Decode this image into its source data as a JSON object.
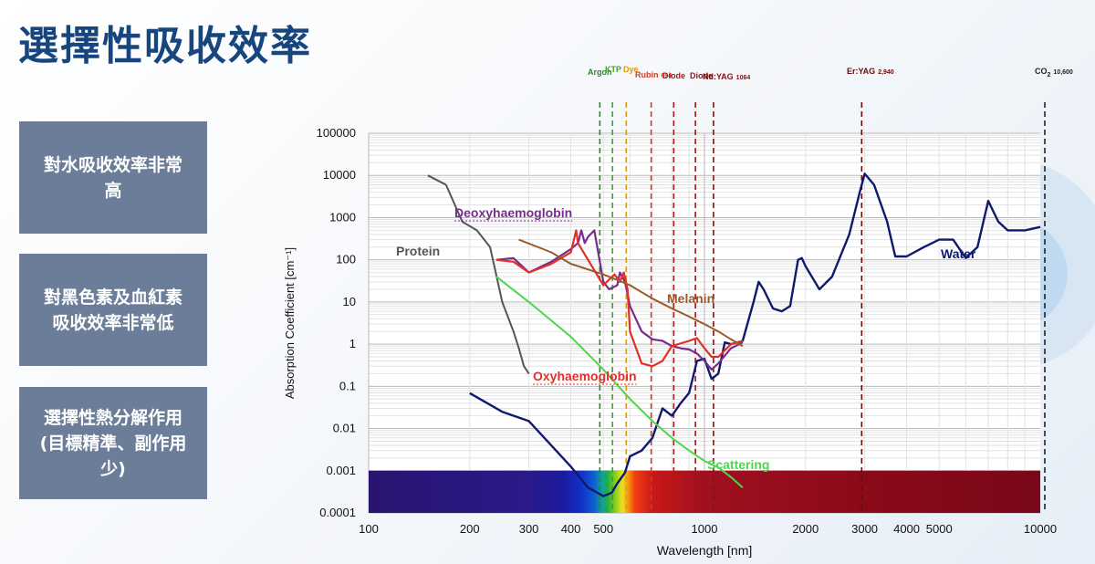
{
  "title": "選擇性吸收效率",
  "side_boxes": [
    {
      "text": "對水吸收效率非常高"
    },
    {
      "text": "對黑色素及血紅素吸收效率非常低"
    },
    {
      "text": "選擇性熱分解作用 (目標精準、副作用少)"
    }
  ],
  "colors": {
    "title": "#17467e",
    "box": "#6b7d99",
    "water": "#0f1a6e",
    "protein": "#555555",
    "deoxy": "#7a2b8f",
    "oxy": "#e0302a",
    "melanin": "#9a5a2a",
    "scattering": "#4fd64a"
  },
  "chart_data": {
    "type": "line",
    "xscale": "log",
    "yscale": "log",
    "xlabel": "Wavelength [nm]",
    "ylabel": "Absorption Coefficient [cm⁻¹]",
    "xlim": [
      100,
      10000
    ],
    "ylim": [
      0.0001,
      100000
    ],
    "x_ticks": [
      100,
      200,
      300,
      400,
      500,
      1000,
      2000,
      3000,
      4000,
      5000,
      10000
    ],
    "y_ticks": [
      "0.0001",
      "0.001",
      "0.01",
      "0.1",
      "1",
      "10",
      "100",
      "1000",
      "10000",
      "100000"
    ],
    "grid": true,
    "series": [
      {
        "name": "Water",
        "color": "#0f1a6e",
        "points": [
          [
            200,
            0.069
          ],
          [
            250,
            0.025
          ],
          [
            300,
            0.015
          ],
          [
            400,
            0.00125
          ],
          [
            450,
            0.0004
          ],
          [
            500,
            0.00025
          ],
          [
            530,
            0.0003
          ],
          [
            550,
            0.0005
          ],
          [
            580,
            0.0009
          ],
          [
            600,
            0.0022
          ],
          [
            650,
            0.003
          ],
          [
            700,
            0.006
          ],
          [
            750,
            0.03
          ],
          [
            800,
            0.02
          ],
          [
            850,
            0.04
          ],
          [
            900,
            0.07
          ],
          [
            950,
            0.4
          ],
          [
            1000,
            0.45
          ],
          [
            1050,
            0.15
          ],
          [
            1100,
            0.2
          ],
          [
            1150,
            1.1
          ],
          [
            1200,
            1.0
          ],
          [
            1300,
            1.2
          ],
          [
            1400,
            10
          ],
          [
            1450,
            30
          ],
          [
            1500,
            20
          ],
          [
            1600,
            7
          ],
          [
            1700,
            6
          ],
          [
            1800,
            8
          ],
          [
            1900,
            100
          ],
          [
            1950,
            110
          ],
          [
            2000,
            70
          ],
          [
            2200,
            20
          ],
          [
            2400,
            40
          ],
          [
            2700,
            400
          ],
          [
            2900,
            4000
          ],
          [
            3000,
            11000
          ],
          [
            3200,
            6000
          ],
          [
            3500,
            800
          ],
          [
            3700,
            120
          ],
          [
            4000,
            120
          ],
          [
            4500,
            200
          ],
          [
            5000,
            300
          ],
          [
            5500,
            300
          ],
          [
            6000,
            110
          ],
          [
            6500,
            200
          ],
          [
            7000,
            2500
          ],
          [
            7500,
            800
          ],
          [
            8000,
            500
          ],
          [
            9000,
            500
          ],
          [
            10000,
            600
          ]
        ]
      },
      {
        "name": "Protein",
        "color": "#555555",
        "points": [
          [
            150,
            10000
          ],
          [
            170,
            6000
          ],
          [
            190,
            800
          ],
          [
            210,
            500
          ],
          [
            230,
            200
          ],
          [
            250,
            10
          ],
          [
            270,
            2
          ],
          [
            280,
            0.8
          ],
          [
            290,
            0.3
          ],
          [
            300,
            0.2
          ]
        ]
      },
      {
        "name": "Deoxyhaemoglobin",
        "color": "#7a2b8f",
        "points": [
          [
            240,
            100
          ],
          [
            270,
            110
          ],
          [
            300,
            50
          ],
          [
            350,
            90
          ],
          [
            400,
            180
          ],
          [
            420,
            250
          ],
          [
            430,
            500
          ],
          [
            440,
            250
          ],
          [
            450,
            350
          ],
          [
            470,
            500
          ],
          [
            500,
            30
          ],
          [
            520,
            20
          ],
          [
            550,
            25
          ],
          [
            560,
            50
          ],
          [
            580,
            30
          ],
          [
            600,
            8
          ],
          [
            650,
            2
          ],
          [
            700,
            1.3
          ],
          [
            750,
            1.2
          ],
          [
            800,
            0.9
          ],
          [
            850,
            0.8
          ],
          [
            900,
            0.75
          ],
          [
            950,
            0.6
          ],
          [
            1000,
            0.4
          ],
          [
            1050,
            0.25
          ],
          [
            1100,
            0.35
          ],
          [
            1200,
            0.8
          ],
          [
            1300,
            1.1
          ]
        ]
      },
      {
        "name": "Oxyhaemoglobin",
        "color": "#e0302a",
        "points": [
          [
            240,
            100
          ],
          [
            270,
            90
          ],
          [
            300,
            50
          ],
          [
            350,
            80
          ],
          [
            400,
            150
          ],
          [
            415,
            500
          ],
          [
            420,
            250
          ],
          [
            450,
            100
          ],
          [
            500,
            25
          ],
          [
            540,
            45
          ],
          [
            560,
            30
          ],
          [
            575,
            50
          ],
          [
            590,
            20
          ],
          [
            600,
            2
          ],
          [
            650,
            0.35
          ],
          [
            700,
            0.3
          ],
          [
            750,
            0.4
          ],
          [
            800,
            0.9
          ],
          [
            900,
            1.2
          ],
          [
            950,
            1.4
          ],
          [
            1000,
            0.8
          ],
          [
            1050,
            0.5
          ],
          [
            1100,
            0.5
          ],
          [
            1200,
            1.0
          ],
          [
            1300,
            1.2
          ]
        ]
      },
      {
        "name": "Melanin",
        "color": "#9a5a2a",
        "points": [
          [
            280,
            300
          ],
          [
            350,
            150
          ],
          [
            400,
            80
          ],
          [
            500,
            45
          ],
          [
            600,
            25
          ],
          [
            700,
            12
          ],
          [
            800,
            7
          ],
          [
            900,
            4.5
          ],
          [
            1000,
            3
          ],
          [
            1100,
            2
          ],
          [
            1200,
            1.3
          ],
          [
            1300,
            0.9
          ]
        ]
      },
      {
        "name": "Scattering",
        "color": "#4fd64a",
        "points": [
          [
            240,
            40
          ],
          [
            300,
            10
          ],
          [
            400,
            1.5
          ],
          [
            500,
            0.25
          ],
          [
            600,
            0.05
          ],
          [
            700,
            0.015
          ],
          [
            800,
            0.006
          ],
          [
            900,
            0.003
          ],
          [
            1000,
            0.0017
          ],
          [
            1100,
            0.0012
          ],
          [
            1200,
            0.0007
          ],
          [
            1300,
            0.0004
          ]
        ]
      }
    ],
    "laser_lines": [
      {
        "name": "Argon 488",
        "x": 488,
        "color": "#2a8a2a"
      },
      {
        "name": "KTP 532",
        "x": 532,
        "color": "#4a9a3a"
      },
      {
        "name": "Dye 585",
        "x": 585,
        "color": "#d99a10"
      },
      {
        "name": "Ruby 694",
        "x": 694,
        "color": "#d43a2a"
      },
      {
        "name": "Diode 810",
        "x": 810,
        "color": "#b01818"
      },
      {
        "name": "Diode 940",
        "x": 940,
        "color": "#a01515"
      },
      {
        "name": "Nd:YAG 1064",
        "x": 1064,
        "color": "#8a1010"
      },
      {
        "name": "Er:YAG 2,940",
        "x": 2940,
        "color": "#6a0a0a"
      },
      {
        "name": "CO2 10,600",
        "x": 10600,
        "color": "#222222"
      }
    ],
    "laser_labels": [
      {
        "text": "Argon",
        "color": "#2a8a2a"
      },
      {
        "text": "KTP",
        "color": "#4a9a3a"
      },
      {
        "text": "Dye",
        "color": "#d99a10"
      },
      {
        "text": "Rubin",
        "sub": "694",
        "color": "#d43a2a"
      },
      {
        "text": "Diode",
        "color": "#b01818"
      },
      {
        "text": "Diode",
        "color": "#a01515"
      },
      {
        "text": "Nd:YAG",
        "sub": "1064",
        "color": "#8a1010"
      },
      {
        "text": "Er:YAG",
        "sub": "2,940",
        "color": "#6a0a0a"
      },
      {
        "text": "CO",
        "mid": "2",
        "sub": "10,600",
        "color": "#222222"
      }
    ],
    "series_labels": [
      {
        "text": "Deoxyhaemoglobin",
        "color": "#7a2b8f",
        "underline": true
      },
      {
        "text": "Protein",
        "color": "#555555"
      },
      {
        "text": "Water",
        "color": "#0f1a6e"
      },
      {
        "text": "Melanin",
        "color": "#9a5a2a"
      },
      {
        "text": "Oxyhaemoglobin",
        "color": "#e0302a",
        "underline": true
      },
      {
        "text": "Scattering",
        "color": "#4fd64a"
      }
    ]
  }
}
